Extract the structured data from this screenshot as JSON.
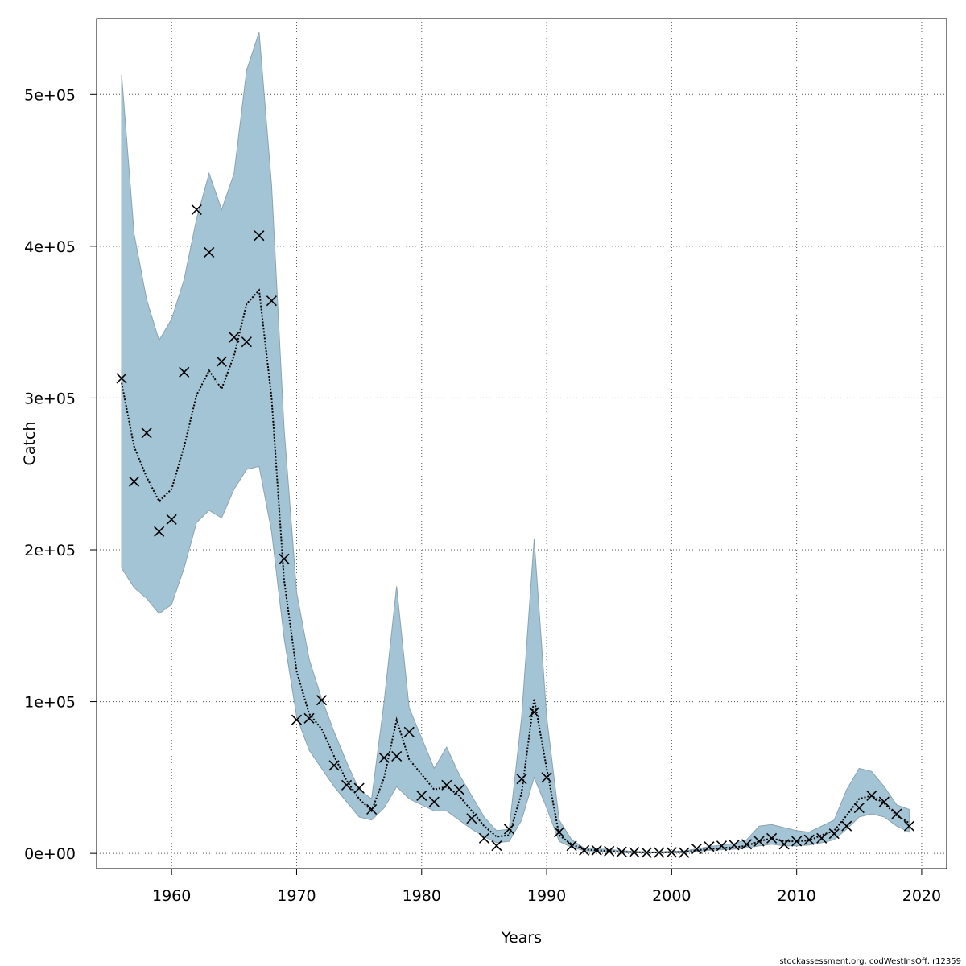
{
  "chart_data": {
    "type": "line",
    "title": "",
    "xlabel": "Years",
    "ylabel": "Catch",
    "xlim": [
      1954,
      2022
    ],
    "ylim": [
      -10000,
      550000
    ],
    "x_ticks": [
      1960,
      1970,
      1980,
      1990,
      2000,
      2010,
      2020
    ],
    "y_ticks": [
      0,
      100000,
      200000,
      300000,
      400000,
      500000
    ],
    "x_tick_labels": [
      "1960",
      "1970",
      "1980",
      "1990",
      "2000",
      "2010",
      "2020"
    ],
    "y_tick_labels": [
      "0e+00",
      "1e+05",
      "2e+05",
      "3e+05",
      "4e+05",
      "5e+05"
    ],
    "grid": true,
    "colors": {
      "band": "#a3c4d5",
      "band_edge": "#8aa3b0",
      "line": "#000000",
      "marker": "#000000"
    },
    "x": [
      1956,
      1957,
      1958,
      1959,
      1960,
      1961,
      1962,
      1963,
      1964,
      1965,
      1966,
      1967,
      1968,
      1969,
      1970,
      1971,
      1972,
      1973,
      1974,
      1975,
      1976,
      1977,
      1978,
      1979,
      1980,
      1981,
      1982,
      1983,
      1984,
      1985,
      1986,
      1987,
      1988,
      1989,
      1990,
      1991,
      1992,
      1993,
      1994,
      1995,
      1996,
      1997,
      1998,
      1999,
      2000,
      2001,
      2002,
      2003,
      2004,
      2005,
      2006,
      2007,
      2008,
      2009,
      2010,
      2011,
      2012,
      2013,
      2014,
      2015,
      2016,
      2017,
      2018,
      2019
    ],
    "series": [
      {
        "role": "estimate",
        "style": "dotted-line",
        "values": [
          310000,
          268000,
          248000,
          232000,
          240000,
          268000,
          302000,
          318000,
          306000,
          328000,
          362000,
          371000,
          300000,
          180000,
          120000,
          92000,
          82000,
          64000,
          48000,
          36000,
          28000,
          50000,
          88000,
          62000,
          52000,
          42000,
          44000,
          38000,
          28000,
          18000,
          11000,
          12000,
          40000,
          102000,
          56000,
          12000,
          6000,
          2500,
          2000,
          1500,
          1000,
          800,
          600,
          600,
          800,
          900,
          2000,
          3000,
          3500,
          4000,
          5000,
          8000,
          10000,
          8000,
          8000,
          8500,
          12000,
          15000,
          25000,
          36000,
          38000,
          33000,
          25000,
          20000
        ]
      },
      {
        "role": "upper",
        "style": "band-edge",
        "values": [
          513000,
          408000,
          365000,
          338000,
          352000,
          378000,
          418000,
          448000,
          424000,
          448000,
          516000,
          541000,
          440000,
          280000,
          172000,
          128000,
          102000,
          80000,
          60000,
          42000,
          36000,
          100000,
          176000,
          96000,
          76000,
          56000,
          70000,
          52000,
          38000,
          24000,
          15000,
          16000,
          90000,
          207000,
          90000,
          22000,
          9000,
          3500,
          3000,
          2500,
          1800,
          1200,
          1000,
          1000,
          1300,
          1600,
          3000,
          4500,
          5500,
          6500,
          9000,
          18000,
          19000,
          17000,
          15000,
          14000,
          18000,
          22000,
          42000,
          56000,
          54000,
          44000,
          32000,
          29000
        ]
      },
      {
        "role": "lower",
        "style": "band-edge",
        "values": [
          188000,
          175000,
          168000,
          158000,
          164000,
          188000,
          218000,
          226000,
          221000,
          240000,
          253000,
          255000,
          212000,
          142000,
          90000,
          68000,
          56000,
          44000,
          34000,
          24000,
          22000,
          30000,
          44000,
          36000,
          32000,
          28000,
          28000,
          22000,
          16000,
          11000,
          7000,
          8000,
          22000,
          50000,
          30000,
          8000,
          4000,
          1800,
          1400,
          1000,
          600,
          400,
          300,
          300,
          400,
          500,
          1300,
          2000,
          2400,
          2800,
          3500,
          5000,
          6000,
          5000,
          5000,
          5500,
          7000,
          9000,
          16000,
          24000,
          26000,
          24000,
          18000,
          14000
        ]
      },
      {
        "role": "observed",
        "style": "x-markers",
        "values": [
          313000,
          245000,
          277000,
          212000,
          220000,
          317000,
          424000,
          396000,
          324000,
          340000,
          337000,
          407000,
          364000,
          194000,
          88000,
          89000,
          101000,
          58000,
          45000,
          43000,
          29000,
          63000,
          64000,
          80000,
          38000,
          34000,
          45000,
          42000,
          23000,
          10000,
          5000,
          16000,
          49000,
          93000,
          50000,
          14000,
          5000,
          2000,
          2000,
          1500,
          1000,
          800,
          500,
          600,
          700,
          500,
          3000,
          4500,
          5000,
          5500,
          6000,
          8000,
          10000,
          6000,
          8000,
          9000,
          10000,
          13000,
          18000,
          30000,
          38000,
          34000,
          26000,
          18000
        ]
      }
    ]
  },
  "credit": "stockassessment.org, codWestInsOff, r12359"
}
